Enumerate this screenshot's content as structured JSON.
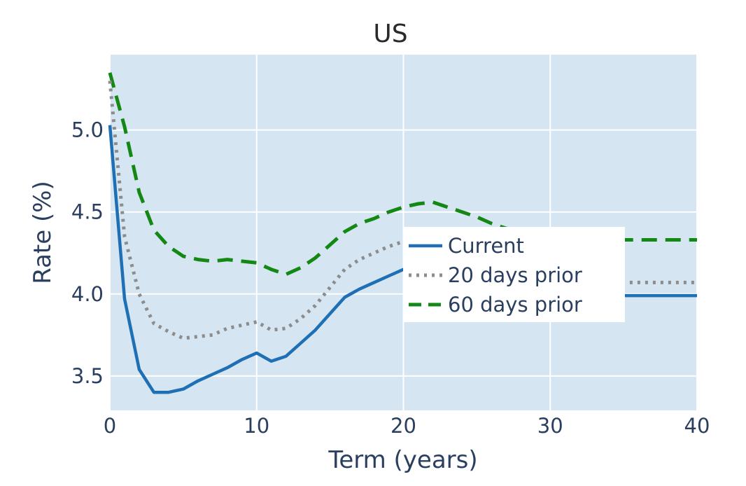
{
  "chart_data": {
    "type": "line",
    "title": "US",
    "xlabel": "Term (years)",
    "ylabel": "Rate (%)",
    "xlim": [
      0,
      40
    ],
    "ylim": [
      3.29,
      5.46
    ],
    "xticks": [
      0,
      10,
      20,
      30,
      40
    ],
    "yticks": [
      3.5,
      4.0,
      4.5,
      5.0
    ],
    "xtick_labels": [
      "0",
      "10",
      "20",
      "30",
      "40"
    ],
    "ytick_labels": [
      "3.5",
      "4.0",
      "4.5",
      "5.0"
    ],
    "grid": true,
    "legend_position": "center-right",
    "plot_background": "#d5e5f1",
    "series": [
      {
        "name": "Current",
        "color": "#1f6fb5",
        "style": "solid",
        "x": [
          0,
          1,
          2,
          3,
          4,
          5,
          6,
          7,
          8,
          9,
          10,
          11,
          12,
          13,
          14,
          15,
          16,
          17,
          18,
          19,
          20,
          21,
          22,
          23,
          24,
          25,
          26,
          27,
          28,
          29,
          30,
          31,
          32,
          33,
          34,
          35,
          36,
          37,
          38,
          39,
          40
        ],
        "values": [
          5.03,
          3.97,
          3.54,
          3.4,
          3.4,
          3.42,
          3.47,
          3.51,
          3.55,
          3.6,
          3.64,
          3.59,
          3.62,
          3.7,
          3.78,
          3.88,
          3.98,
          4.03,
          4.07,
          4.11,
          4.15,
          4.16,
          4.16,
          4.15,
          4.13,
          4.11,
          4.09,
          4.07,
          4.05,
          4.03,
          4.02,
          4.01,
          4.0,
          3.995,
          3.99,
          3.99,
          3.99,
          3.99,
          3.99,
          3.99,
          3.99
        ]
      },
      {
        "name": "20 days prior",
        "color": "#8c8c8c",
        "style": "dotted",
        "x": [
          0,
          1,
          2,
          3,
          4,
          5,
          6,
          7,
          8,
          9,
          10,
          11,
          12,
          13,
          14,
          15,
          16,
          17,
          18,
          19,
          20,
          21,
          22,
          23,
          24,
          25,
          26,
          27,
          28,
          29,
          30,
          31,
          32,
          33,
          34,
          35,
          36,
          37,
          38,
          39,
          40
        ],
        "values": [
          5.3,
          4.35,
          4.0,
          3.82,
          3.77,
          3.73,
          3.74,
          3.75,
          3.79,
          3.81,
          3.83,
          3.78,
          3.79,
          3.85,
          3.93,
          4.04,
          4.15,
          4.21,
          4.25,
          4.29,
          4.32,
          4.33,
          4.33,
          4.31,
          4.29,
          4.26,
          4.23,
          4.2,
          4.17,
          4.14,
          4.12,
          4.1,
          4.09,
          4.08,
          4.075,
          4.07,
          4.07,
          4.07,
          4.07,
          4.07,
          4.07
        ]
      },
      {
        "name": "60 days prior",
        "color": "#148814",
        "style": "dashed",
        "x": [
          0,
          1,
          2,
          3,
          4,
          5,
          6,
          7,
          8,
          9,
          10,
          11,
          12,
          13,
          14,
          15,
          16,
          17,
          18,
          19,
          20,
          21,
          22,
          23,
          24,
          25,
          26,
          27,
          28,
          29,
          30,
          31,
          32,
          33,
          34,
          35,
          36,
          37,
          38,
          39,
          40
        ],
        "values": [
          5.35,
          5.02,
          4.62,
          4.39,
          4.29,
          4.23,
          4.21,
          4.2,
          4.21,
          4.2,
          4.19,
          4.15,
          4.12,
          4.16,
          4.22,
          4.3,
          4.38,
          4.43,
          4.46,
          4.5,
          4.53,
          4.55,
          4.56,
          4.53,
          4.5,
          4.47,
          4.43,
          4.4,
          4.38,
          4.36,
          4.35,
          4.34,
          4.33,
          4.33,
          4.33,
          4.33,
          4.33,
          4.33,
          4.33,
          4.33,
          4.33
        ]
      }
    ]
  }
}
